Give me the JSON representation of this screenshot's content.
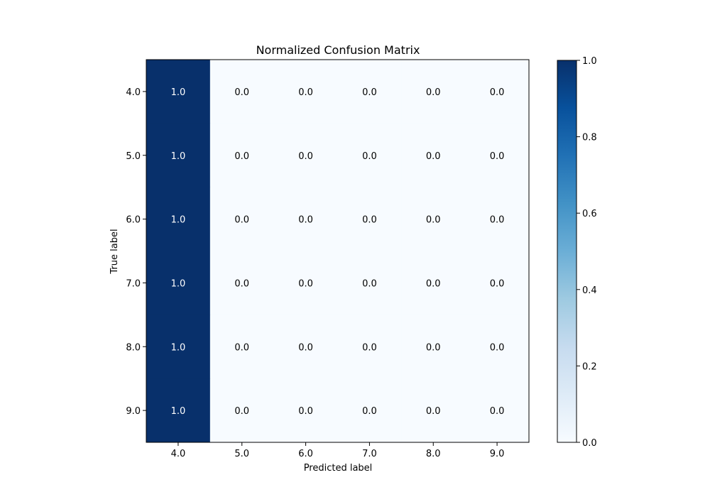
{
  "chart_data": {
    "type": "heatmap",
    "title": "Normalized Confusion Matrix",
    "xlabel": "Predicted label",
    "ylabel": "True label",
    "x_categories": [
      "4.0",
      "5.0",
      "6.0",
      "7.0",
      "8.0",
      "9.0"
    ],
    "y_categories": [
      "4.0",
      "5.0",
      "6.0",
      "7.0",
      "8.0",
      "9.0"
    ],
    "values": [
      [
        1.0,
        0.0,
        0.0,
        0.0,
        0.0,
        0.0
      ],
      [
        1.0,
        0.0,
        0.0,
        0.0,
        0.0,
        0.0
      ],
      [
        1.0,
        0.0,
        0.0,
        0.0,
        0.0,
        0.0
      ],
      [
        1.0,
        0.0,
        0.0,
        0.0,
        0.0,
        0.0
      ],
      [
        1.0,
        0.0,
        0.0,
        0.0,
        0.0,
        0.0
      ],
      [
        1.0,
        0.0,
        0.0,
        0.0,
        0.0,
        0.0
      ]
    ],
    "value_labels": [
      [
        "1.0",
        "0.0",
        "0.0",
        "0.0",
        "0.0",
        "0.0"
      ],
      [
        "1.0",
        "0.0",
        "0.0",
        "0.0",
        "0.0",
        "0.0"
      ],
      [
        "1.0",
        "0.0",
        "0.0",
        "0.0",
        "0.0",
        "0.0"
      ],
      [
        "1.0",
        "0.0",
        "0.0",
        "0.0",
        "0.0",
        "0.0"
      ],
      [
        "1.0",
        "0.0",
        "0.0",
        "0.0",
        "0.0",
        "0.0"
      ],
      [
        "1.0",
        "0.0",
        "0.0",
        "0.0",
        "0.0",
        "0.0"
      ]
    ],
    "colormap": "Blues",
    "color_low": "#f7fbff",
    "color_high": "#08306b",
    "text_color_dark_cell": "#ffffff",
    "text_color_light_cell": "#000000",
    "colorbar": {
      "range": [
        0.0,
        1.0
      ],
      "ticks": [
        0.0,
        0.2,
        0.4,
        0.6,
        0.8,
        1.0
      ],
      "tick_labels": [
        "0.0",
        "0.2",
        "0.4",
        "0.6",
        "0.8",
        "1.0"
      ]
    },
    "grid": false
  }
}
